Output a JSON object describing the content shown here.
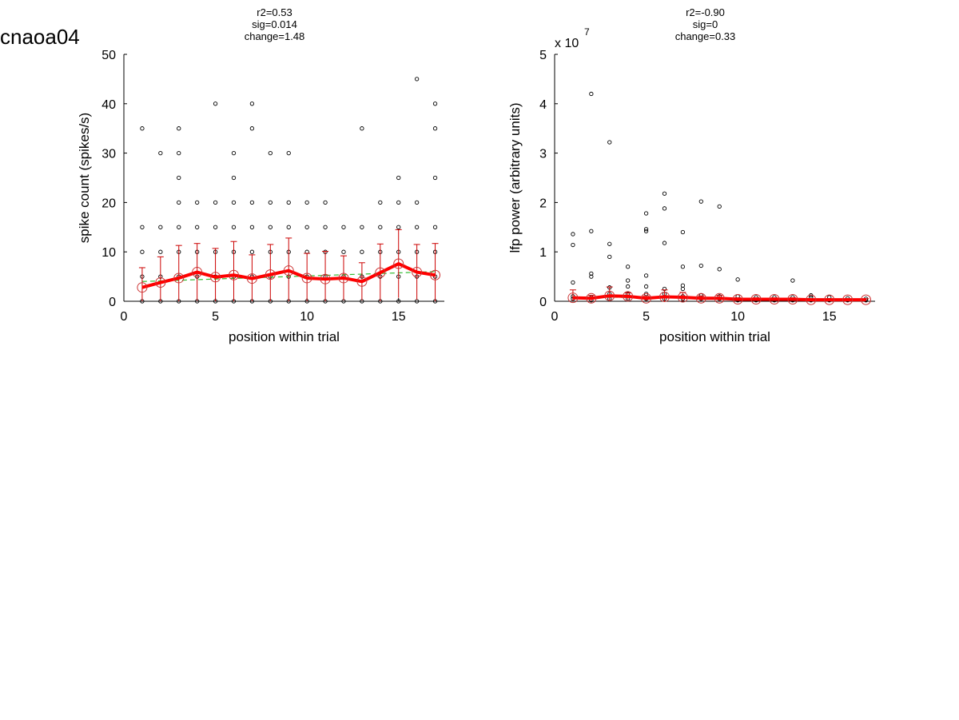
{
  "page": {
    "title": "cnaoa04"
  },
  "colors": {
    "scatter": "#000000",
    "mean_line": "#ff0000",
    "error_bars": "#cc0000",
    "mean_markers": "#cc3333",
    "fit_line": "#33bb33"
  },
  "chart_data": [
    {
      "type": "scatter",
      "title": "",
      "stats": [
        "r2=0.53",
        "sig=0.014",
        "change=1.48"
      ],
      "xlabel": "position within trial",
      "ylabel": "spike count (spikes/s)",
      "xlim": [
        0,
        17.5
      ],
      "ylim": [
        0,
        50
      ],
      "xticks": [
        0,
        5,
        10,
        15
      ],
      "yticks": [
        0,
        10,
        20,
        30,
        40,
        50
      ],
      "exponent_label": "",
      "points": [
        [
          1,
          0
        ],
        [
          1,
          5
        ],
        [
          1,
          10
        ],
        [
          1,
          15
        ],
        [
          1,
          35
        ],
        [
          2,
          0
        ],
        [
          2,
          5
        ],
        [
          2,
          10
        ],
        [
          2,
          15
        ],
        [
          2,
          30
        ],
        [
          3,
          0
        ],
        [
          3,
          5
        ],
        [
          3,
          10
        ],
        [
          3,
          15
        ],
        [
          3,
          20
        ],
        [
          3,
          25
        ],
        [
          3,
          30
        ],
        [
          3,
          35
        ],
        [
          4,
          0
        ],
        [
          4,
          5
        ],
        [
          4,
          10
        ],
        [
          4,
          15
        ],
        [
          4,
          20
        ],
        [
          5,
          0
        ],
        [
          5,
          5
        ],
        [
          5,
          10
        ],
        [
          5,
          15
        ],
        [
          5,
          20
        ],
        [
          5,
          40
        ],
        [
          6,
          0
        ],
        [
          6,
          5
        ],
        [
          6,
          10
        ],
        [
          6,
          15
        ],
        [
          6,
          20
        ],
        [
          6,
          25
        ],
        [
          6,
          30
        ],
        [
          7,
          0
        ],
        [
          7,
          5
        ],
        [
          7,
          10
        ],
        [
          7,
          15
        ],
        [
          7,
          20
        ],
        [
          7,
          35
        ],
        [
          7,
          40
        ],
        [
          8,
          0
        ],
        [
          8,
          5
        ],
        [
          8,
          10
        ],
        [
          8,
          15
        ],
        [
          8,
          20
        ],
        [
          8,
          30
        ],
        [
          9,
          0
        ],
        [
          9,
          5
        ],
        [
          9,
          10
        ],
        [
          9,
          15
        ],
        [
          9,
          20
        ],
        [
          9,
          30
        ],
        [
          10,
          0
        ],
        [
          10,
          5
        ],
        [
          10,
          10
        ],
        [
          10,
          15
        ],
        [
          10,
          20
        ],
        [
          11,
          0
        ],
        [
          11,
          5
        ],
        [
          11,
          10
        ],
        [
          11,
          15
        ],
        [
          11,
          20
        ],
        [
          12,
          0
        ],
        [
          12,
          5
        ],
        [
          12,
          10
        ],
        [
          12,
          15
        ],
        [
          13,
          0
        ],
        [
          13,
          5
        ],
        [
          13,
          10
        ],
        [
          13,
          15
        ],
        [
          13,
          35
        ],
        [
          14,
          0
        ],
        [
          14,
          5
        ],
        [
          14,
          10
        ],
        [
          14,
          15
        ],
        [
          14,
          20
        ],
        [
          15,
          0
        ],
        [
          15,
          5
        ],
        [
          15,
          10
        ],
        [
          15,
          15
        ],
        [
          15,
          20
        ],
        [
          15,
          25
        ],
        [
          16,
          0
        ],
        [
          16,
          5
        ],
        [
          16,
          10
        ],
        [
          16,
          15
        ],
        [
          16,
          20
        ],
        [
          16,
          45
        ],
        [
          17,
          0
        ],
        [
          17,
          5
        ],
        [
          17,
          10
        ],
        [
          17,
          15
        ],
        [
          17,
          25
        ],
        [
          17,
          35
        ],
        [
          17,
          40
        ]
      ],
      "mean": {
        "x": [
          1,
          2,
          3,
          4,
          5,
          6,
          7,
          8,
          9,
          10,
          11,
          12,
          13,
          14,
          15,
          16,
          17
        ],
        "y": [
          2.8,
          3.8,
          4.7,
          5.9,
          4.9,
          5.3,
          4.6,
          5.4,
          6.2,
          4.7,
          4.5,
          4.7,
          4.0,
          5.8,
          7.6,
          5.9,
          5.3
        ],
        "err": [
          4.0,
          5.2,
          6.6,
          5.8,
          5.8,
          6.8,
          4.8,
          6.1,
          6.6,
          5.0,
          5.6,
          4.5,
          3.8,
          5.8,
          6.9,
          5.6,
          6.4
        ]
      },
      "fit": {
        "x": [
          1,
          17
        ],
        "y": [
          4.0,
          6.0
        ]
      }
    },
    {
      "type": "scatter",
      "title": "",
      "stats": [
        "r2=-0.90",
        "sig=0",
        "change=0.33"
      ],
      "xlabel": "position within trial",
      "ylabel": "lfp power (arbitrary units)",
      "xlim": [
        0,
        17.5
      ],
      "ylim": [
        0,
        5
      ],
      "xticks": [
        0,
        5,
        10,
        15
      ],
      "yticks": [
        0,
        1,
        2,
        3,
        4,
        5
      ],
      "exponent_label": "x 10",
      "exponent_power": "7",
      "points": [
        [
          1,
          0.05
        ],
        [
          1,
          0.1
        ],
        [
          1,
          0.38
        ],
        [
          1,
          1.14
        ],
        [
          1,
          1.36
        ],
        [
          2,
          0.02
        ],
        [
          2,
          0.08
        ],
        [
          2,
          0.5
        ],
        [
          2,
          0.56
        ],
        [
          2,
          1.42
        ],
        [
          2,
          4.2
        ],
        [
          3,
          0.05
        ],
        [
          3,
          0.15
        ],
        [
          3,
          0.28
        ],
        [
          3,
          0.9
        ],
        [
          3,
          1.16
        ],
        [
          3,
          3.22
        ],
        [
          4,
          0.05
        ],
        [
          4,
          0.15
        ],
        [
          4,
          0.3
        ],
        [
          4,
          0.42
        ],
        [
          4,
          0.7
        ],
        [
          5,
          0.05
        ],
        [
          5,
          0.15
        ],
        [
          5,
          0.3
        ],
        [
          5,
          0.52
        ],
        [
          5,
          1.42
        ],
        [
          5,
          1.46
        ],
        [
          5,
          1.78
        ],
        [
          6,
          0.05
        ],
        [
          6,
          0.15
        ],
        [
          6,
          0.25
        ],
        [
          6,
          1.18
        ],
        [
          6,
          1.88
        ],
        [
          6,
          2.18
        ],
        [
          7,
          0.05
        ],
        [
          7,
          0.1
        ],
        [
          7,
          0.25
        ],
        [
          7,
          0.32
        ],
        [
          7,
          0.7
        ],
        [
          7,
          1.4
        ],
        [
          8,
          0.05
        ],
        [
          8,
          0.12
        ],
        [
          8,
          0.72
        ],
        [
          8,
          2.02
        ],
        [
          9,
          0.05
        ],
        [
          9,
          0.1
        ],
        [
          9,
          0.65
        ],
        [
          9,
          1.92
        ],
        [
          10,
          0.02
        ],
        [
          10,
          0.1
        ],
        [
          10,
          0.44
        ],
        [
          11,
          0.02
        ],
        [
          11,
          0.08
        ],
        [
          12,
          0.02
        ],
        [
          12,
          0.08
        ],
        [
          13,
          0.02
        ],
        [
          13,
          0.08
        ],
        [
          13,
          0.42
        ],
        [
          14,
          0.02
        ],
        [
          14,
          0.08
        ],
        [
          14,
          0.12
        ],
        [
          15,
          0.02
        ],
        [
          15,
          0.08
        ],
        [
          16,
          0.02
        ],
        [
          16,
          0.06
        ],
        [
          17,
          0.02
        ],
        [
          17,
          0.05
        ]
      ],
      "mean": {
        "x": [
          1,
          2,
          3,
          4,
          5,
          6,
          7,
          8,
          9,
          10,
          11,
          12,
          13,
          14,
          15,
          16,
          17
        ],
        "y": [
          0.07,
          0.06,
          0.11,
          0.1,
          0.06,
          0.09,
          0.08,
          0.06,
          0.06,
          0.04,
          0.04,
          0.04,
          0.04,
          0.03,
          0.03,
          0.03,
          0.03
        ],
        "err": [
          0.16,
          0.06,
          0.18,
          0.07,
          0.05,
          0.14,
          0.1,
          0.05,
          0.06,
          0.03,
          0.03,
          0.03,
          0.03,
          0.02,
          0.02,
          0.02,
          0.02
        ]
      },
      "fit": {
        "x": [
          1,
          17
        ],
        "y": [
          0.09,
          0.03
        ]
      }
    }
  ]
}
